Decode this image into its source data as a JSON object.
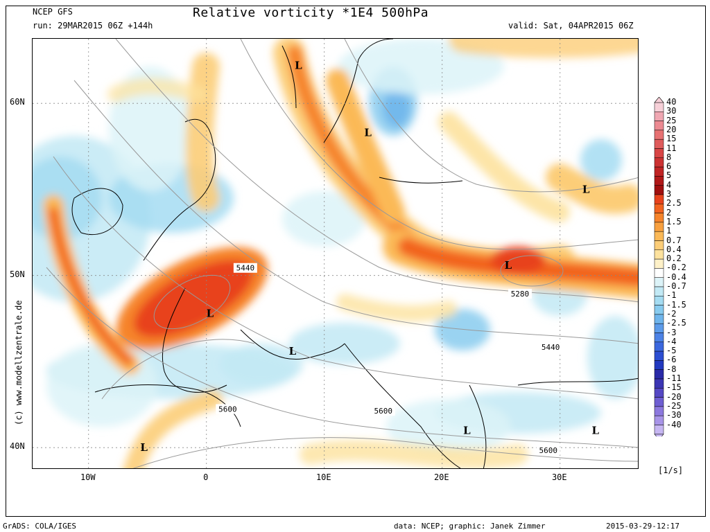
{
  "header": {
    "model": "NCEP GFS",
    "run": "run: 29MAR2015 06Z +144h",
    "title": "Relative vorticity *1E4 500hPa",
    "valid": "valid: Sat, 04APR2015 06Z"
  },
  "axes": {
    "lat_labels": [
      "60N",
      "50N",
      "40N"
    ],
    "lon_labels": [
      "10W",
      "0",
      "10E",
      "20E",
      "30E"
    ]
  },
  "map": {
    "low_marker": "L",
    "low_centers": [
      {
        "lon": 7.8,
        "lat": 62.2
      },
      {
        "lon": 13.7,
        "lat": 58.3
      },
      {
        "lon": 32.2,
        "lat": 55.0
      },
      {
        "lon": 25.6,
        "lat": 50.6
      },
      {
        "lon": 0.3,
        "lat": 47.8
      },
      {
        "lon": 7.3,
        "lat": 45.6
      },
      {
        "lon": 22.1,
        "lat": 41.0
      },
      {
        "lon": 33.0,
        "lat": 41.0
      },
      {
        "lon": -5.3,
        "lat": 40.0
      }
    ],
    "height_contour_labels": [
      {
        "text": "5440",
        "lon": 3.3,
        "lat": 50.4
      },
      {
        "text": "5280",
        "lon": 26.6,
        "lat": 48.9
      },
      {
        "text": "5440",
        "lon": 29.2,
        "lat": 45.8
      },
      {
        "text": "5600",
        "lon": 1.8,
        "lat": 42.2
      },
      {
        "text": "5600",
        "lon": 15.0,
        "lat": 42.1
      },
      {
        "text": "5600",
        "lon": 29.0,
        "lat": 39.8
      }
    ]
  },
  "colorbar": {
    "unit": "[1/s]",
    "labels": [
      "40",
      "30",
      "25",
      "20",
      "15",
      "11",
      "8",
      "6",
      "5",
      "4",
      "3",
      "2.5",
      "2",
      "1.5",
      "1",
      "0.7",
      "0.4",
      "0.2",
      "-0.2",
      "-0.4",
      "-0.7",
      "-1",
      "-1.5",
      "-2",
      "-2.5",
      "-3",
      "-4",
      "-5",
      "-6",
      "-8",
      "-11",
      "-15",
      "-20",
      "-25",
      "-30",
      "-40"
    ],
    "colors": [
      "#f7d0d8",
      "#f0a7b2",
      "#ec8a92",
      "#e77172",
      "#df5b5b",
      "#d84545",
      "#cc3232",
      "#c02424",
      "#b01818",
      "#a00f0f",
      "#e8421c",
      "#f2631f",
      "#f6842b",
      "#f8a03f",
      "#fbb957",
      "#fccd78",
      "#fde29e",
      "#fef1c8",
      "#ffffff",
      "#dcf3f8",
      "#c2e9f5",
      "#a5dcf2",
      "#88cbef",
      "#6fb5ec",
      "#5c9bea",
      "#4c82e6",
      "#3b67de",
      "#2c4ed2",
      "#2239c0",
      "#2a2aa8",
      "#3c36b4",
      "#5548c4",
      "#6e5ed2",
      "#8c78de",
      "#a894e8",
      "#c6b6f2"
    ]
  },
  "footer": {
    "left": "GrADS: COLA/IGES",
    "middle": "data: NCEP; graphic: Janek Zimmer",
    "right": "2015-03-29-12:17"
  },
  "credit": "(c)  www.modellzentrale.de",
  "style": {
    "warm": [
      "#fef1c8",
      "#fde29e",
      "#fccd78",
      "#fbb957",
      "#f8a03f",
      "#f6842b",
      "#f2631f",
      "#e8421c"
    ],
    "cool": [
      "#dcf3f8",
      "#c2e9f5",
      "#a5dcf2",
      "#88cbef",
      "#6fb5ec"
    ]
  }
}
